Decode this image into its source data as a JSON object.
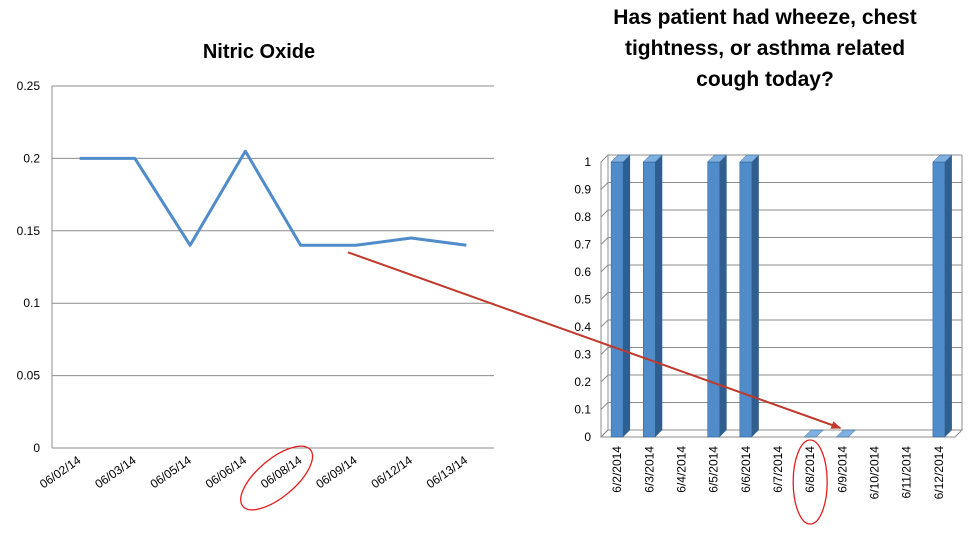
{
  "colors": {
    "line": "#4f8cc9",
    "bar_front": "#4f8cc9",
    "bar_side": "#2f5f8f",
    "bar_top": "#7fb0df",
    "grid": "#8c8c8c",
    "annotation": "#c0392b",
    "highlight": "#e02020"
  },
  "chart_data": [
    {
      "type": "line",
      "title": "Nitric Oxide",
      "x": [
        "06/02/14",
        "06/03/14",
        "06/05/14",
        "06/06/14",
        "06/08/14",
        "06/09/14",
        "06/12/14",
        "06/13/14"
      ],
      "series": [
        {
          "values": [
            0.2,
            0.2,
            0.14,
            0.205,
            0.14,
            0.14,
            0.145,
            0.14
          ]
        }
      ],
      "ylim": [
        0,
        0.25
      ],
      "yticks": [
        "0",
        "0.05",
        "0.1",
        "0.15",
        "0.2",
        "0.25"
      ],
      "grid": true,
      "highlighted_category": "06/08/14"
    },
    {
      "type": "bar",
      "title": "Has patient had wheeze, chest tightness, or asthma related cough today?",
      "title_lines": [
        "Has patient had wheeze, chest",
        "tightness, or asthma related",
        "cough today?"
      ],
      "categories": [
        "6/2/2014",
        "6/3/2014",
        "6/4/2014",
        "6/5/2014",
        "6/6/2014",
        "6/7/2014",
        "6/8/2014",
        "6/9/2014",
        "6/10/2014",
        "6/11/2014",
        "6/12/2014"
      ],
      "values": [
        1,
        1,
        null,
        1,
        1,
        null,
        0,
        0,
        null,
        null,
        1
      ],
      "ylim": [
        0,
        1
      ],
      "yticks": [
        "0",
        "0.1",
        "0.2",
        "0.3",
        "0.4",
        "0.5",
        "0.6",
        "0.7",
        "0.8",
        "0.9",
        "1"
      ],
      "grid": true,
      "style": "3d",
      "highlighted_category": "6/8/2014"
    }
  ],
  "annotation": {
    "type": "arrow",
    "from": "line chart 06/09/14",
    "to": "bar chart 6/9/2014"
  }
}
